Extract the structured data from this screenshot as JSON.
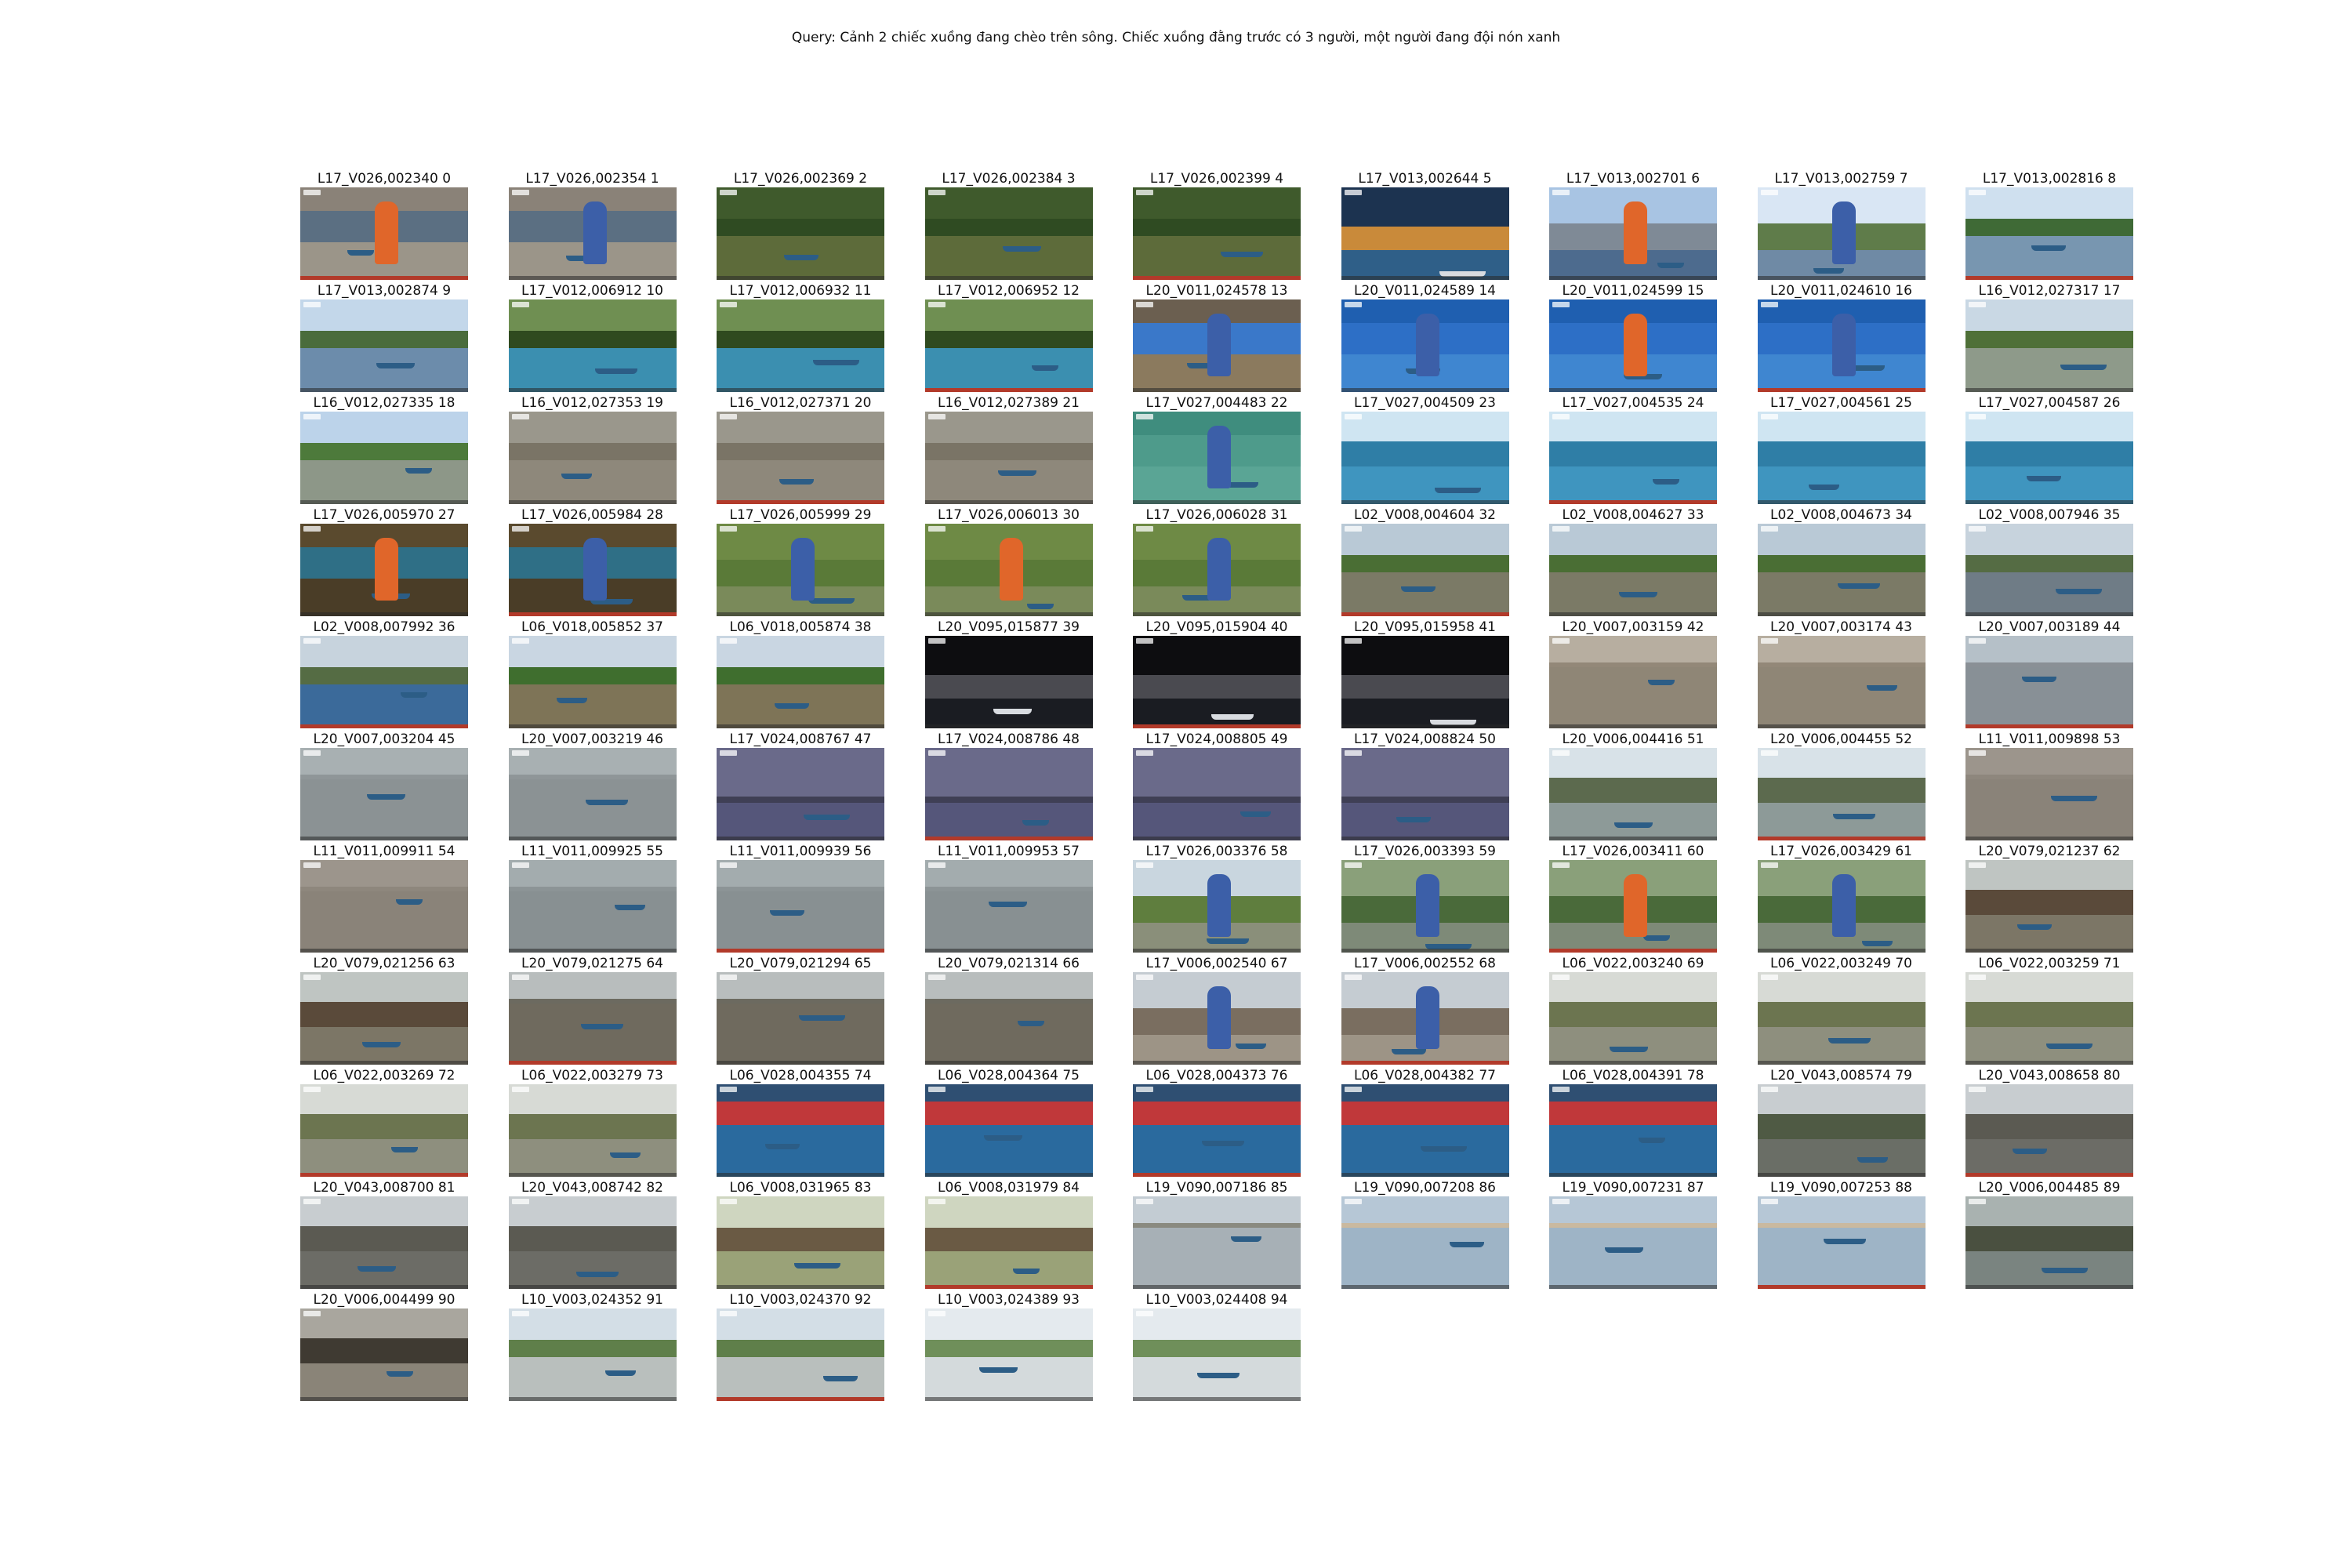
{
  "query": "Query: Cảnh 2 chiếc xuồng đang chèo trên sông. Chiếc xuồng đằng trước có 3 người, một người đang đội nón xanh",
  "thumbnails": [
    {
      "label": "L17_V026,002340 0",
      "scene": "closeup",
      "colors": {
        "sky": "#8a8278",
        "land": "#5b6f82",
        "water": "#9b9589"
      }
    },
    {
      "label": "L17_V026,002354 1",
      "scene": "closeup",
      "colors": {
        "sky": "#8a8278",
        "land": "#5b6f82",
        "water": "#9b9589"
      }
    },
    {
      "label": "L17_V026,002369 2",
      "scene": "river",
      "colors": {
        "sky": "#3f5a2c",
        "land": "#2f4b22",
        "water": "#5d6b3a"
      }
    },
    {
      "label": "L17_V026,002384 3",
      "scene": "river",
      "colors": {
        "sky": "#3f5a2c",
        "land": "#2f4b22",
        "water": "#5d6b3a"
      }
    },
    {
      "label": "L17_V026,002399 4",
      "scene": "river",
      "colors": {
        "sky": "#3f5a2c",
        "land": "#2f4b22",
        "water": "#5d6b3a"
      }
    },
    {
      "label": "L17_V013,002644 5",
      "scene": "night",
      "colors": {
        "sky": "#1c3350",
        "land": "#c98a3a",
        "water": "#2f5f88"
      }
    },
    {
      "label": "L17_V013,002701 6",
      "scene": "person",
      "colors": {
        "sky": "#a8c4e3",
        "land": "#7f8a96",
        "water": "#4d6b8e"
      }
    },
    {
      "label": "L17_V013,002759 7",
      "scene": "person",
      "colors": {
        "sky": "#d9e6f4",
        "land": "#5f7c4a",
        "water": "#6f8aa5"
      }
    },
    {
      "label": "L17_V013,002816 8",
      "scene": "river",
      "colors": {
        "sky": "#cfe0ef",
        "land": "#3f6a36",
        "water": "#7896b0"
      }
    },
    {
      "label": "L17_V013,002874 9",
      "scene": "river",
      "colors": {
        "sky": "#c3d7ea",
        "land": "#4a6c3c",
        "water": "#6c8cab"
      }
    },
    {
      "label": "L17_V012,006912 10",
      "scene": "river",
      "colors": {
        "sky": "#6f8f52",
        "land": "#2f4a1f",
        "water": "#3b8fb0"
      }
    },
    {
      "label": "L17_V012,006932 11",
      "scene": "river",
      "colors": {
        "sky": "#6f8f52",
        "land": "#2f4a1f",
        "water": "#3b8fb0"
      }
    },
    {
      "label": "L17_V012,006952 12",
      "scene": "river",
      "colors": {
        "sky": "#6f8f52",
        "land": "#2f4a1f",
        "water": "#3b8fb0"
      }
    },
    {
      "label": "L20_V011,024578 13",
      "scene": "closeup",
      "colors": {
        "sky": "#6b5f50",
        "land": "#3a78c9",
        "water": "#8b7a5e"
      }
    },
    {
      "label": "L20_V011,024589 14",
      "scene": "closeup",
      "colors": {
        "sky": "#1f5fb0",
        "land": "#2d6fc6",
        "water": "#3f86d0"
      }
    },
    {
      "label": "L20_V011,024599 15",
      "scene": "closeup",
      "colors": {
        "sky": "#1f5fb0",
        "land": "#2d6fc6",
        "water": "#3f86d0"
      }
    },
    {
      "label": "L20_V011,024610 16",
      "scene": "closeup",
      "colors": {
        "sky": "#1f5fb0",
        "land": "#2d6fc6",
        "water": "#3f86d0"
      }
    },
    {
      "label": "L16_V012,027317 17",
      "scene": "river",
      "colors": {
        "sky": "#c9d8e4",
        "land": "#4f7038",
        "water": "#8e9a8a"
      }
    },
    {
      "label": "L16_V012,027335 18",
      "scene": "river",
      "colors": {
        "sky": "#bcd3ea",
        "land": "#4d7a3b",
        "water": "#8d9788"
      }
    },
    {
      "label": "L16_V012,027353 19",
      "scene": "river",
      "colors": {
        "sky": "#9a978c",
        "land": "#7a7466",
        "water": "#8e887b"
      }
    },
    {
      "label": "L16_V012,027371 20",
      "scene": "river",
      "colors": {
        "sky": "#9a978c",
        "land": "#7a7466",
        "water": "#8e887b"
      }
    },
    {
      "label": "L16_V012,027389 21",
      "scene": "river",
      "colors": {
        "sky": "#9a978c",
        "land": "#7a7466",
        "water": "#8e887b"
      }
    },
    {
      "label": "L17_V027,004483 22",
      "scene": "closeup",
      "colors": {
        "sky": "#3f8d7e",
        "land": "#4e9b8b",
        "water": "#5aa595"
      }
    },
    {
      "label": "L17_V027,004509 23",
      "scene": "harbor",
      "colors": {
        "sky": "#cfe5f2",
        "land": "#2f7ea6",
        "water": "#3f95bf"
      }
    },
    {
      "label": "L17_V027,004535 24",
      "scene": "harbor",
      "colors": {
        "sky": "#cfe5f2",
        "land": "#2f7ea6",
        "water": "#3f95bf"
      }
    },
    {
      "label": "L17_V027,004561 25",
      "scene": "harbor",
      "colors": {
        "sky": "#cfe5f2",
        "land": "#2f7ea6",
        "water": "#3f95bf"
      }
    },
    {
      "label": "L17_V027,004587 26",
      "scene": "harbor",
      "colors": {
        "sky": "#cfe5f2",
        "land": "#2f7ea6",
        "water": "#3f95bf"
      }
    },
    {
      "label": "L17_V026,005970 27",
      "scene": "closeup",
      "colors": {
        "sky": "#5a4a2e",
        "land": "#2f6f86",
        "water": "#4a3d27"
      }
    },
    {
      "label": "L17_V026,005984 28",
      "scene": "closeup",
      "colors": {
        "sky": "#5a4a2e",
        "land": "#2f6f86",
        "water": "#4a3d27"
      }
    },
    {
      "label": "L17_V026,005999 29",
      "scene": "person",
      "colors": {
        "sky": "#6e8a45",
        "land": "#5a7a38",
        "water": "#7a8a5a"
      }
    },
    {
      "label": "L17_V026,006013 30",
      "scene": "person",
      "colors": {
        "sky": "#6e8a45",
        "land": "#5a7a38",
        "water": "#7a8a5a"
      }
    },
    {
      "label": "L17_V026,006028 31",
      "scene": "person",
      "colors": {
        "sky": "#6e8a45",
        "land": "#5a7a38",
        "water": "#7a8a5a"
      }
    },
    {
      "label": "L02_V008,004604 32",
      "scene": "river",
      "colors": {
        "sky": "#b9c9d6",
        "land": "#4a6e34",
        "water": "#7b7a66"
      }
    },
    {
      "label": "L02_V008,004627 33",
      "scene": "river",
      "colors": {
        "sky": "#b9c9d6",
        "land": "#4a6e34",
        "water": "#7b7a66"
      }
    },
    {
      "label": "L02_V008,004673 34",
      "scene": "river",
      "colors": {
        "sky": "#b9c9d6",
        "land": "#4a6e34",
        "water": "#7b7a66"
      }
    },
    {
      "label": "L02_V008,007946 35",
      "scene": "river",
      "colors": {
        "sky": "#c7d3dd",
        "land": "#556c44",
        "water": "#6f7c86"
      }
    },
    {
      "label": "L02_V008,007992 36",
      "scene": "river",
      "colors": {
        "sky": "#c7d3dd",
        "land": "#556c44",
        "water": "#3b6a9a"
      }
    },
    {
      "label": "L06_V018,005852 37",
      "scene": "river",
      "colors": {
        "sky": "#c9d6e2",
        "land": "#3f6e2e",
        "water": "#7e7457"
      }
    },
    {
      "label": "L06_V018,005874 38",
      "scene": "river",
      "colors": {
        "sky": "#c9d6e2",
        "land": "#3f6e2e",
        "water": "#7e7457"
      }
    },
    {
      "label": "L20_V095,015877 39",
      "scene": "night",
      "colors": {
        "sky": "#0d0d10",
        "land": "#4a4a50",
        "water": "#1a1c22"
      }
    },
    {
      "label": "L20_V095,015904 40",
      "scene": "night",
      "colors": {
        "sky": "#0d0d10",
        "land": "#4a4a50",
        "water": "#1a1c22"
      }
    },
    {
      "label": "L20_V095,015958 41",
      "scene": "night",
      "colors": {
        "sky": "#0d0d10",
        "land": "#4a4a50",
        "water": "#1a1c22"
      }
    },
    {
      "label": "L20_V007,003159 42",
      "scene": "wide",
      "colors": {
        "sky": "#b7aea0",
        "land": "#938878",
        "water": "#8f8676"
      }
    },
    {
      "label": "L20_V007,003174 43",
      "scene": "wide",
      "colors": {
        "sky": "#b7aea0",
        "land": "#938878",
        "water": "#8f8676"
      }
    },
    {
      "label": "L20_V007,003189 44",
      "scene": "wide",
      "colors": {
        "sky": "#b5c0c8",
        "land": "#8a9096",
        "water": "#889096"
      }
    },
    {
      "label": "L20_V007,003204 45",
      "scene": "wide",
      "colors": {
        "sky": "#a8b0b2",
        "land": "#8f9698",
        "water": "#8b9294"
      }
    },
    {
      "label": "L20_V007,003219 46",
      "scene": "wide",
      "colors": {
        "sky": "#a8b0b2",
        "land": "#8f9698",
        "water": "#8b9294"
      }
    },
    {
      "label": "L17_V024,008767 47",
      "scene": "storm",
      "colors": {
        "sky": "#6a6a8a",
        "land": "#3f3f55",
        "water": "#55567a"
      }
    },
    {
      "label": "L17_V024,008786 48",
      "scene": "storm",
      "colors": {
        "sky": "#6a6a8a",
        "land": "#3f3f55",
        "water": "#55567a"
      }
    },
    {
      "label": "L17_V024,008805 49",
      "scene": "storm",
      "colors": {
        "sky": "#6a6a8a",
        "land": "#3f3f55",
        "water": "#55567a"
      }
    },
    {
      "label": "L17_V024,008824 50",
      "scene": "storm",
      "colors": {
        "sky": "#6a6a8a",
        "land": "#3f3f55",
        "water": "#55567a"
      }
    },
    {
      "label": "L20_V006,004416 51",
      "scene": "harbor",
      "colors": {
        "sky": "#d8e2e8",
        "land": "#5c6a4e",
        "water": "#8d9a98"
      }
    },
    {
      "label": "L20_V006,004455 52",
      "scene": "harbor",
      "colors": {
        "sky": "#d8e2e8",
        "land": "#5c6a4e",
        "water": "#8d9a98"
      }
    },
    {
      "label": "L11_V011,009898 53",
      "scene": "wide",
      "colors": {
        "sky": "#9c958c",
        "land": "#8e877d",
        "water": "#8a8379"
      }
    },
    {
      "label": "L11_V011,009911 54",
      "scene": "wide",
      "colors": {
        "sky": "#9c958c",
        "land": "#8e877d",
        "water": "#8a8379"
      }
    },
    {
      "label": "L11_V011,009925 55",
      "scene": "wide",
      "colors": {
        "sky": "#a3acae",
        "land": "#8c9496",
        "water": "#889092"
      }
    },
    {
      "label": "L11_V011,009939 56",
      "scene": "wide",
      "colors": {
        "sky": "#a3acae",
        "land": "#8c9496",
        "water": "#889092"
      }
    },
    {
      "label": "L11_V011,009953 57",
      "scene": "wide",
      "colors": {
        "sky": "#a3acae",
        "land": "#8c9496",
        "water": "#889092"
      }
    },
    {
      "label": "L17_V026,003376 58",
      "scene": "person",
      "colors": {
        "sky": "#c9d6df",
        "land": "#5f7e3e",
        "water": "#8a8f7a"
      }
    },
    {
      "label": "L17_V026,003393 59",
      "scene": "person",
      "colors": {
        "sky": "#8aa07a",
        "land": "#4a6a3a",
        "water": "#7e8a78"
      }
    },
    {
      "label": "L17_V026,003411 60",
      "scene": "person",
      "colors": {
        "sky": "#8aa07a",
        "land": "#4a6a3a",
        "water": "#7e8a78"
      }
    },
    {
      "label": "L17_V026,003429 61",
      "scene": "person",
      "colors": {
        "sky": "#8aa07a",
        "land": "#4a6a3a",
        "water": "#7e8a78"
      }
    },
    {
      "label": "L20_V079,021237 62",
      "scene": "harbor",
      "colors": {
        "sky": "#bfc5c2",
        "land": "#5a4a3a",
        "water": "#7c7666"
      }
    },
    {
      "label": "L20_V079,021256 63",
      "scene": "harbor",
      "colors": {
        "sky": "#bfc5c2",
        "land": "#5a4a3a",
        "water": "#7c7666"
      }
    },
    {
      "label": "L20_V079,021275 64",
      "scene": "wide",
      "colors": {
        "sky": "#b8bdbd",
        "land": "#6c6a60",
        "water": "#6f6a5e"
      }
    },
    {
      "label": "L20_V079,021294 65",
      "scene": "wide",
      "colors": {
        "sky": "#b8bdbd",
        "land": "#6c6a60",
        "water": "#6f6a5e"
      }
    },
    {
      "label": "L20_V079,021314 66",
      "scene": "wide",
      "colors": {
        "sky": "#b8bdbd",
        "land": "#6c6a60",
        "water": "#6f6a5e"
      }
    },
    {
      "label": "L17_V006,002540 67",
      "scene": "person",
      "colors": {
        "sky": "#c5ccd2",
        "land": "#7a6e60",
        "water": "#9d9486"
      }
    },
    {
      "label": "L17_V006,002552 68",
      "scene": "person",
      "colors": {
        "sky": "#c5ccd2",
        "land": "#7a6e60",
        "water": "#9d9486"
      }
    },
    {
      "label": "L06_V022,003240 69",
      "scene": "harbor",
      "colors": {
        "sky": "#d7dad5",
        "land": "#6c7550",
        "water": "#8e8f7e"
      }
    },
    {
      "label": "L06_V022,003249 70",
      "scene": "harbor",
      "colors": {
        "sky": "#d7dad5",
        "land": "#6c7550",
        "water": "#8e8f7e"
      }
    },
    {
      "label": "L06_V022,003259 71",
      "scene": "harbor",
      "colors": {
        "sky": "#d7dad5",
        "land": "#6c7550",
        "water": "#8e8f7e"
      }
    },
    {
      "label": "L06_V022,003269 72",
      "scene": "harbor",
      "colors": {
        "sky": "#d7dad5",
        "land": "#6c7550",
        "water": "#8e8f7e"
      }
    },
    {
      "label": "L06_V022,003279 73",
      "scene": "harbor",
      "colors": {
        "sky": "#d7dad5",
        "land": "#6c7550",
        "water": "#8e8f7e"
      }
    },
    {
      "label": "L06_V028,004355 74",
      "scene": "race",
      "colors": {
        "sky": "#2f4f72",
        "land": "#c0383a",
        "water": "#2a6a9e"
      }
    },
    {
      "label": "L06_V028,004364 75",
      "scene": "race",
      "colors": {
        "sky": "#2f4f72",
        "land": "#c0383a",
        "water": "#2a6a9e"
      }
    },
    {
      "label": "L06_V028,004373 76",
      "scene": "race",
      "colors": {
        "sky": "#2f4f72",
        "land": "#c0383a",
        "water": "#2a6a9e"
      }
    },
    {
      "label": "L06_V028,004382 77",
      "scene": "race",
      "colors": {
        "sky": "#2f4f72",
        "land": "#c0383a",
        "water": "#2a6a9e"
      }
    },
    {
      "label": "L06_V028,004391 78",
      "scene": "race",
      "colors": {
        "sky": "#2f4f72",
        "land": "#c0383a",
        "water": "#2a6a9e"
      }
    },
    {
      "label": "L20_V043,008574 79",
      "scene": "harbor",
      "colors": {
        "sky": "#c8cdd0",
        "land": "#4f5a44",
        "water": "#6a6e66"
      }
    },
    {
      "label": "L20_V043,008658 80",
      "scene": "harbor",
      "colors": {
        "sky": "#c8cdd0",
        "land": "#5b5a52",
        "water": "#6c6c66"
      }
    },
    {
      "label": "L20_V043,008700 81",
      "scene": "harbor",
      "colors": {
        "sky": "#c8cdd0",
        "land": "#5b5a52",
        "water": "#6c6c66"
      }
    },
    {
      "label": "L20_V043,008742 82",
      "scene": "harbor",
      "colors": {
        "sky": "#c8cdd0",
        "land": "#5b5a52",
        "water": "#6c6c66"
      }
    },
    {
      "label": "L06_V008,031965 83",
      "scene": "bridge",
      "colors": {
        "sky": "#cfd6c0",
        "land": "#6a5a44",
        "water": "#9aa278"
      }
    },
    {
      "label": "L06_V008,031979 84",
      "scene": "bridge",
      "colors": {
        "sky": "#cfd6c0",
        "land": "#6a5a44",
        "water": "#9aa278"
      }
    },
    {
      "label": "L19_V090,007186 85",
      "scene": "wide",
      "colors": {
        "sky": "#c3ccd3",
        "land": "#8a8a80",
        "water": "#a7b0b6"
      }
    },
    {
      "label": "L19_V090,007208 86",
      "scene": "wide",
      "colors": {
        "sky": "#b6c7d6",
        "land": "#c9b9a0",
        "water": "#9eb4c6"
      }
    },
    {
      "label": "L19_V090,007231 87",
      "scene": "wide",
      "colors": {
        "sky": "#b6c7d6",
        "land": "#c9b9a0",
        "water": "#9eb4c6"
      }
    },
    {
      "label": "L19_V090,007253 88",
      "scene": "wide",
      "colors": {
        "sky": "#b6c7d6",
        "land": "#c9b9a0",
        "water": "#9eb4c6"
      }
    },
    {
      "label": "L20_V006,004485 89",
      "scene": "harbor",
      "colors": {
        "sky": "#a9b2b0",
        "land": "#4a5040",
        "water": "#7a8480"
      }
    },
    {
      "label": "L20_V006,004499 90",
      "scene": "harbor",
      "colors": {
        "sky": "#a9a69e",
        "land": "#3f3a32",
        "water": "#8a8478"
      }
    },
    {
      "label": "L10_V003,024352 91",
      "scene": "river",
      "colors": {
        "sky": "#d3dee6",
        "land": "#5f7f4a",
        "water": "#b9bfbd"
      }
    },
    {
      "label": "L10_V003,024370 92",
      "scene": "river",
      "colors": {
        "sky": "#d3dee6",
        "land": "#5f7f4a",
        "water": "#b9bfbd"
      }
    },
    {
      "label": "L10_V003,024389 93",
      "scene": "river",
      "colors": {
        "sky": "#e4eaee",
        "land": "#6f8f5a",
        "water": "#d4dadc"
      }
    },
    {
      "label": "L10_V003,024408 94",
      "scene": "river",
      "colors": {
        "sky": "#e4eaee",
        "land": "#6f8f5a",
        "water": "#d4dadc"
      }
    }
  ]
}
